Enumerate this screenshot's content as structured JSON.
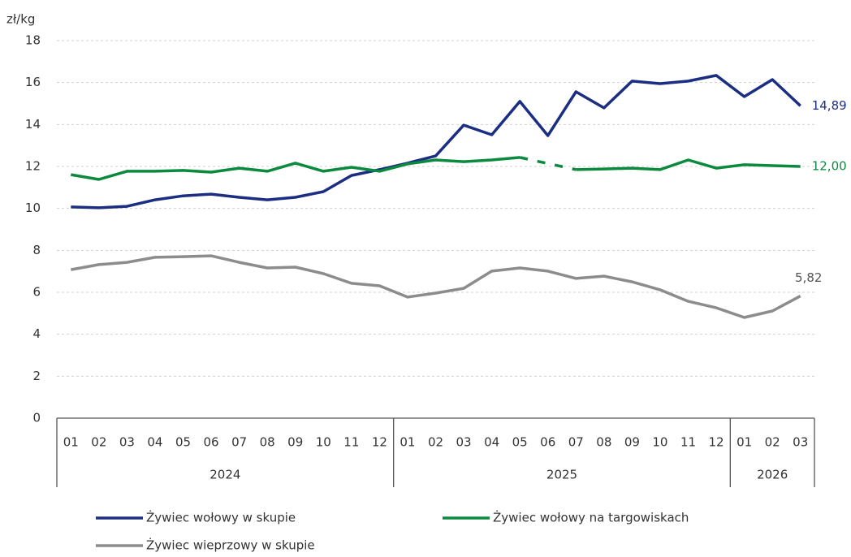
{
  "chart_data": {
    "type": "line",
    "y_axis_label": "zł/kg",
    "groups": [
      {
        "name": "2024",
        "categories": [
          "01",
          "02",
          "03",
          "04",
          "05",
          "06",
          "07",
          "08",
          "09",
          "10",
          "11",
          "12"
        ]
      },
      {
        "name": "2025",
        "categories": [
          "01",
          "02",
          "03",
          "04",
          "05",
          "06",
          "07",
          "08",
          "09",
          "10",
          "11",
          "12"
        ]
      },
      {
        "name": "2026",
        "categories": [
          "01",
          "02",
          "03"
        ]
      }
    ],
    "series": [
      {
        "name": "Żywiec wołowy w skupie",
        "color": "#1b2e82",
        "values": [
          10.07,
          10.03,
          10.1,
          10.41,
          10.6,
          10.68,
          10.53,
          10.41,
          10.53,
          10.8,
          11.57,
          11.85,
          12.16,
          12.5,
          13.97,
          13.51,
          15.1,
          13.47,
          15.56,
          14.79,
          16.07,
          15.95,
          16.07,
          16.34,
          15.33,
          16.14,
          14.89
        ],
        "value_labels": [
          null,
          null,
          null,
          null,
          null,
          null,
          null,
          null,
          null,
          null,
          null,
          null,
          null,
          null,
          null,
          null,
          null,
          null,
          null,
          null,
          null,
          null,
          null,
          null,
          null,
          null,
          "14,89"
        ]
      },
      {
        "name": "Żywiec wołowy na targowiskach",
        "color": "#0b8a3e",
        "values": [
          11.61,
          11.38,
          11.77,
          11.77,
          11.81,
          11.73,
          11.92,
          11.77,
          12.16,
          11.77,
          11.96,
          11.77,
          12.12,
          12.31,
          12.23,
          12.31,
          12.43,
          null,
          11.85,
          11.88,
          11.92,
          11.85,
          12.31,
          11.92,
          12.08,
          12.04,
          12.0
        ],
        "value_labels": [
          null,
          null,
          null,
          null,
          null,
          null,
          null,
          null,
          null,
          null,
          null,
          null,
          null,
          null,
          null,
          null,
          null,
          null,
          null,
          null,
          null,
          null,
          null,
          null,
          null,
          null,
          "12,00"
        ]
      },
      {
        "name": "Żywiec wieprzowy w skupie",
        "color": "#8c8c8c",
        "values": [
          7.08,
          7.32,
          7.43,
          7.67,
          7.7,
          7.74,
          7.43,
          7.16,
          7.2,
          6.89,
          6.43,
          6.31,
          5.77,
          5.96,
          6.19,
          7.01,
          7.16,
          7.01,
          6.66,
          6.77,
          6.5,
          6.12,
          5.57,
          5.26,
          4.8,
          5.11,
          5.82
        ],
        "value_labels": [
          null,
          null,
          null,
          null,
          null,
          null,
          null,
          null,
          null,
          null,
          null,
          null,
          null,
          null,
          null,
          null,
          null,
          null,
          null,
          null,
          null,
          null,
          null,
          null,
          null,
          null,
          "5,82"
        ]
      }
    ],
    "ylim": [
      0,
      18
    ],
    "yticks": [
      0,
      2,
      4,
      6,
      8,
      10,
      12,
      14,
      16,
      18
    ],
    "grid": true,
    "gap_style": "dashed",
    "legend": "bottom"
  }
}
